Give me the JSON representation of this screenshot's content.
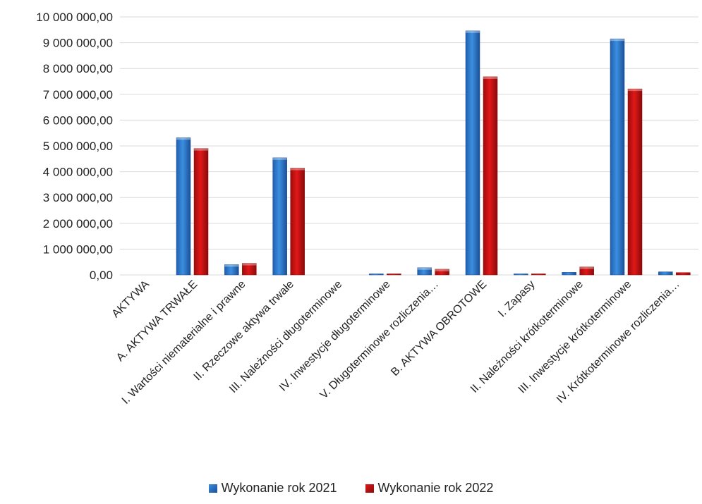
{
  "chart_data": {
    "type": "bar",
    "categories": [
      "AKTYWA",
      "A. AKTYWA TRWAŁE",
      "I. Wartości niematerialne i prawne",
      "II. Rzeczowe aktywa trwałe",
      "III. Należności długoterminowe",
      "IV. Inwestycje długoterminowe",
      "V. Długoterminowe rozliczenia…",
      "B. AKTYWA OBROTOWE",
      "I. Zapasy",
      "II. Należności krótkoterminowe",
      "III. Inwestycje krótkoterminowe",
      "IV. Krótkoterminowe rozliczenia…"
    ],
    "series": [
      {
        "name": "Wykonanie rok 2021",
        "color": "#2f7fd0",
        "values": [
          0,
          5320000,
          400000,
          4540000,
          0,
          10000,
          280000,
          9460000,
          20000,
          100000,
          9150000,
          120000
        ]
      },
      {
        "name": "Wykonanie rok 2022",
        "color": "#cc1212",
        "values": [
          0,
          4900000,
          450000,
          4140000,
          0,
          10000,
          220000,
          7680000,
          5000,
          310000,
          7210000,
          90000
        ]
      }
    ],
    "yticks": [
      "0,00",
      "1 000 000,00",
      "2 000 000,00",
      "3 000 000,00",
      "4 000 000,00",
      "5 000 000,00",
      "6 000 000,00",
      "7 000 000,00",
      "8 000 000,00",
      "9 000 000,00",
      "10 000 000,00"
    ],
    "ylim": [
      0,
      10000000
    ],
    "grid": true,
    "legend_position": "bottom"
  }
}
